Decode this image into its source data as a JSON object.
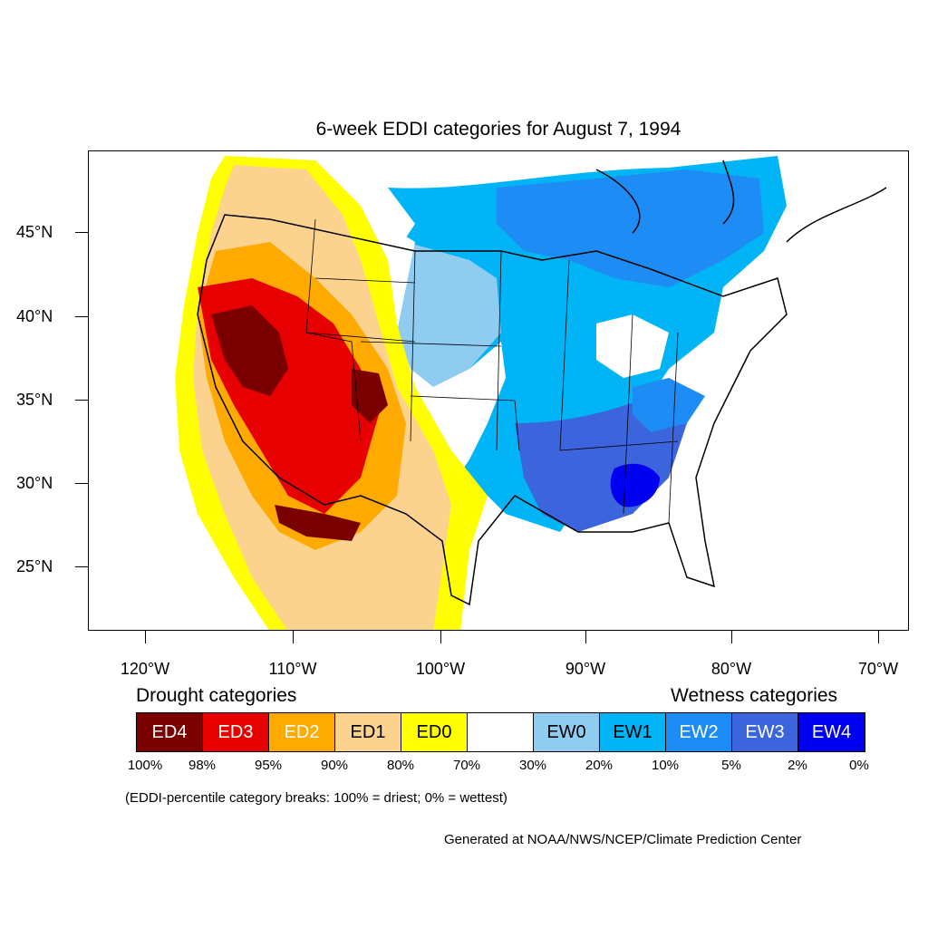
{
  "title": "6-week EDDI categories for August 7, 1994",
  "axes": {
    "lat_labels": [
      "45°N",
      "40°N",
      "35°N",
      "30°N",
      "25°N"
    ],
    "lon_labels": [
      "120°W",
      "110°W",
      "100°W",
      "90°W",
      "80°W",
      "70°W"
    ]
  },
  "legend": {
    "drought_heading": "Drought categories",
    "wetness_heading": "Wetness categories",
    "categories": [
      {
        "label": "ED4",
        "color": "#7a0000",
        "text_color": "#ffffff"
      },
      {
        "label": "ED3",
        "color": "#e60000",
        "text_color": "#ffffff"
      },
      {
        "label": "ED2",
        "color": "#ffaa00",
        "text_color": "#ffffff"
      },
      {
        "label": "ED1",
        "color": "#fcd38e",
        "text_color": "#000000"
      },
      {
        "label": "ED0",
        "color": "#ffff00",
        "text_color": "#000000"
      },
      {
        "label": "",
        "color": "#ffffff",
        "text_color": "#000000"
      },
      {
        "label": "EW0",
        "color": "#90cbf0",
        "text_color": "#000000"
      },
      {
        "label": "EW1",
        "color": "#00b4f5",
        "text_color": "#000000"
      },
      {
        "label": "EW2",
        "color": "#1e8cf5",
        "text_color": "#ffffff"
      },
      {
        "label": "EW3",
        "color": "#3c64dc",
        "text_color": "#ffffff"
      },
      {
        "label": "EW4",
        "color": "#0000f0",
        "text_color": "#ffffff"
      }
    ],
    "percentiles": [
      "100%",
      "98%",
      "95%",
      "90%",
      "80%",
      "70%",
      "30%",
      "20%",
      "10%",
      "5%",
      "2%",
      "0%"
    ]
  },
  "note": "(EDDI-percentile category breaks: 100% = driest; 0% = wettest)",
  "credit": "Generated at NOAA/NWS/NCEP/Climate Prediction Center"
}
